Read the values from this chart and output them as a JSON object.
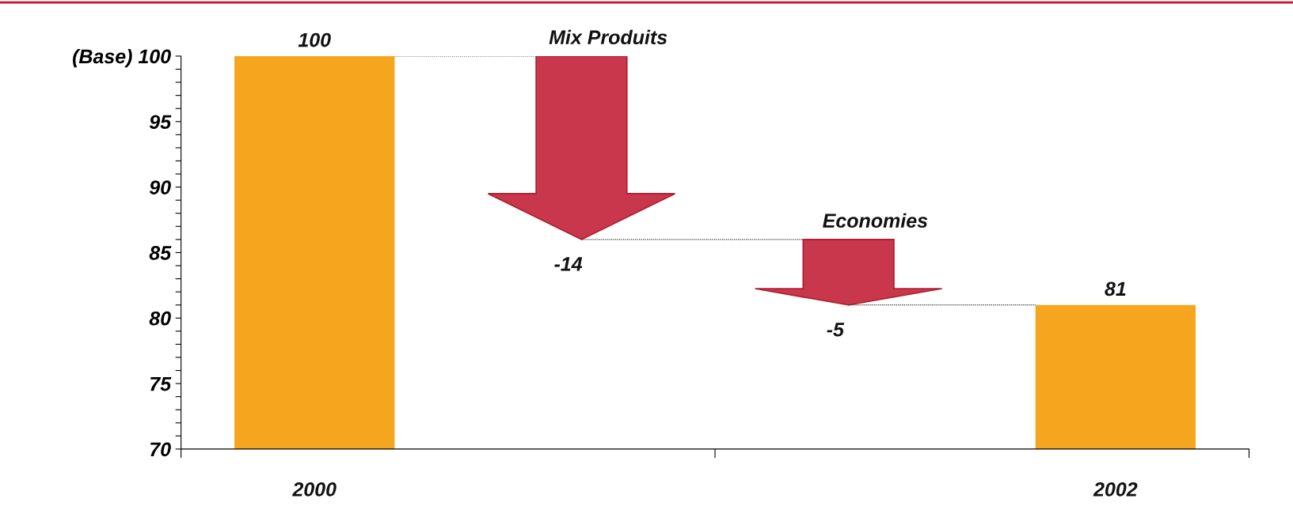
{
  "chart_data": {
    "type": "bar",
    "categories": [
      "2000",
      "Mix Produits",
      "Economies",
      "2002"
    ],
    "values": [
      100,
      -14,
      -5,
      81
    ],
    "base": [
      null,
      100,
      86,
      null
    ],
    "colors": [
      "#f6a61e",
      "#c8374b",
      "#c8374b",
      "#f6a61e"
    ],
    "data_labels": true,
    "ylim": [
      70,
      100
    ],
    "yticks": [
      70,
      {
        "value": 71,
        "label": null
      },
      {
        "value": 72,
        "label": null
      },
      {
        "value": 73,
        "label": null
      },
      {
        "value": 74,
        "label": null
      },
      75,
      {
        "value": 76,
        "label": null
      },
      {
        "value": 77,
        "label": null
      },
      {
        "value": 78,
        "label": null
      },
      {
        "value": 79,
        "label": null
      },
      80,
      {
        "value": 81,
        "label": null
      },
      {
        "value": 82,
        "label": null
      },
      {
        "value": 83,
        "label": null
      },
      {
        "value": 84,
        "label": null
      },
      85,
      {
        "value": 86,
        "label": null
      },
      {
        "value": 87,
        "label": null
      },
      {
        "value": 88,
        "label": null
      },
      {
        "value": 89,
        "label": null
      },
      90,
      {
        "value": 91,
        "label": null
      },
      {
        "value": 92,
        "label": null
      },
      {
        "value": 93,
        "label": null
      },
      {
        "value": 94,
        "label": null
      },
      95,
      {
        "value": 96,
        "label": null
      },
      {
        "value": 97,
        "label": null
      },
      {
        "value": 98,
        "label": null
      },
      {
        "value": 99,
        "label": null
      },
      {
        "value": 100,
        "label": "(Base) 100"
      }
    ],
    "grid": false
  }
}
